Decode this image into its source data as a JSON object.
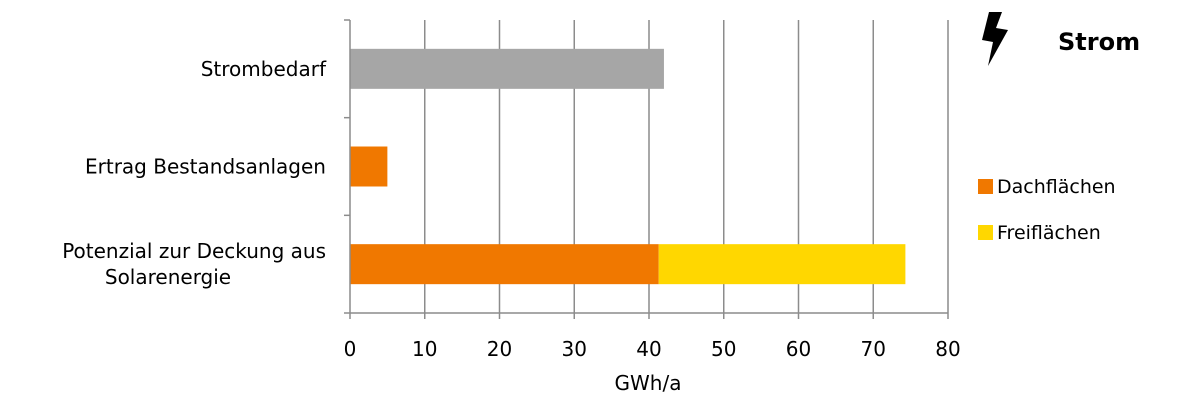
{
  "header": {
    "icon": "lightning-bolt-icon",
    "title": "Strom"
  },
  "chart_data": {
    "type": "bar",
    "orientation": "horizontal",
    "stacked": true,
    "categories": [
      [
        "Strombedarf"
      ],
      [
        "Ertrag Bestandsanlagen"
      ],
      [
        "Potenzial zur Deckung aus",
        "Solarenergie"
      ]
    ],
    "series": [
      {
        "name": "Dachflächen",
        "color": "#f07800",
        "values": [
          null,
          5,
          41.3
        ],
        "in_legend": true
      },
      {
        "name": "Freiflächen",
        "color": "#ffd700",
        "values": [
          null,
          null,
          33
        ],
        "in_legend": true
      },
      {
        "color": "#a6a6a6",
        "values": [
          42,
          null,
          null
        ],
        "in_legend": false
      }
    ],
    "xlabel": "GWh/a",
    "ylabel": "",
    "xlim": [
      0,
      80
    ],
    "xticks": [
      "0",
      "10",
      "20",
      "30",
      "40",
      "50",
      "60",
      "70",
      "80"
    ],
    "grid": "vertical",
    "legend_position": "right"
  }
}
